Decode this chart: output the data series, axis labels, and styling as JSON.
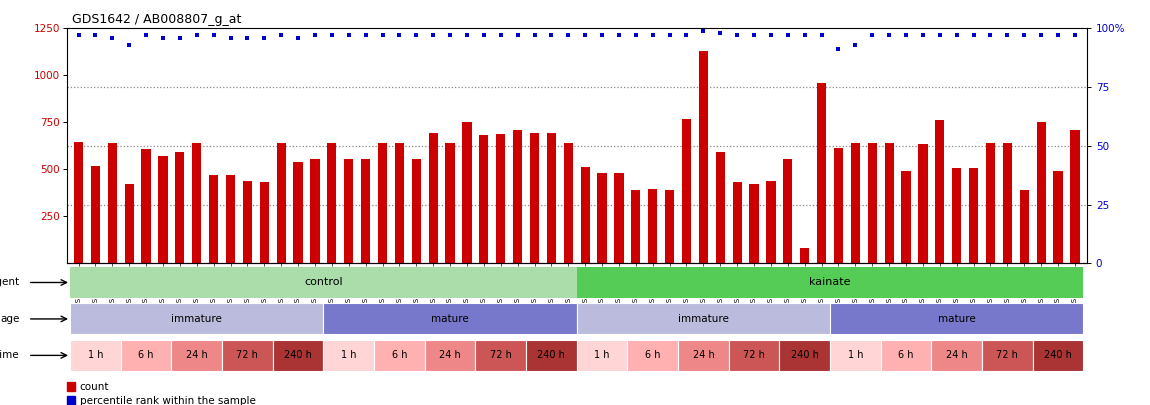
{
  "title": "GDS1642 / AB008807_g_at",
  "samples": [
    "GSM32070",
    "GSM32071",
    "GSM32072",
    "GSM32076",
    "GSM32077",
    "GSM32078",
    "GSM32082",
    "GSM32083",
    "GSM32084",
    "GSM32088",
    "GSM32089",
    "GSM32090",
    "GSM32091",
    "GSM32092",
    "GSM32093",
    "GSM32123",
    "GSM32124",
    "GSM32125",
    "GSM32129",
    "GSM32130",
    "GSM32131",
    "GSM32135",
    "GSM32136",
    "GSM32137",
    "GSM32141",
    "GSM32142",
    "GSM32143",
    "GSM32147",
    "GSM32148",
    "GSM32149",
    "GSM32067",
    "GSM32068",
    "GSM32069",
    "GSM32073",
    "GSM32074",
    "GSM32075",
    "GSM32079",
    "GSM32080",
    "GSM32081",
    "GSM32085",
    "GSM32086",
    "GSM32087",
    "GSM32094",
    "GSM32095",
    "GSM32096",
    "GSM32126",
    "GSM32127",
    "GSM32128",
    "GSM32132",
    "GSM32133",
    "GSM32134",
    "GSM32138",
    "GSM32139",
    "GSM32140",
    "GSM32144",
    "GSM32145",
    "GSM32146",
    "GSM32150",
    "GSM32151",
    "GSM32152"
  ],
  "counts": [
    645,
    520,
    640,
    420,
    610,
    570,
    590,
    640,
    470,
    470,
    440,
    430,
    640,
    540,
    555,
    640,
    555,
    555,
    640,
    640,
    555,
    695,
    640,
    750,
    680,
    690,
    710,
    695,
    695,
    640,
    510,
    480,
    480,
    390,
    395,
    390,
    770,
    1130,
    590,
    430,
    420,
    440,
    555,
    80,
    960,
    615,
    640,
    640,
    640,
    490,
    635,
    760,
    505,
    505,
    640,
    640,
    390,
    750,
    490,
    710
  ],
  "percentiles_pct": [
    97,
    97,
    96,
    93,
    97,
    96,
    96,
    97,
    97,
    96,
    96,
    96,
    97,
    96,
    97,
    97,
    97,
    97,
    97,
    97,
    97,
    97,
    97,
    97,
    97,
    97,
    97,
    97,
    97,
    97,
    97,
    97,
    97,
    97,
    97,
    97,
    97,
    99,
    98,
    97,
    97,
    97,
    97,
    97,
    97,
    91,
    93,
    97,
    97,
    97,
    97,
    97,
    97,
    97,
    97,
    97,
    97,
    97,
    97,
    97
  ],
  "ylim_left": [
    0,
    1250
  ],
  "yticks_left": [
    250,
    500,
    750,
    1000,
    1250
  ],
  "ylim_right": [
    0,
    100
  ],
  "yticks_right": [
    0,
    25,
    50,
    75,
    100
  ],
  "bar_color": "#cc0000",
  "dot_color": "#0000cc",
  "dotted_line_color": "#888888",
  "dotted_lines_pct": [
    25,
    50,
    75
  ],
  "agent_control_color": "#aaddaa",
  "agent_kainate_color": "#55cc55",
  "age_immature_color": "#bbbbdd",
  "age_mature_color": "#7777cc",
  "time_colors": [
    "#ffd5d5",
    "#ffb0b0",
    "#ee8888",
    "#cc5555",
    "#aa3333"
  ],
  "time_labels": [
    "1 h",
    "6 h",
    "24 h",
    "72 h",
    "240 h"
  ],
  "background_color": "#ffffff",
  "n_control": 30,
  "n_kainate": 30,
  "control_immature": 15,
  "control_mature": 15,
  "kainate_immature": 15,
  "kainate_mature": 15,
  "samples_per_time": 3
}
